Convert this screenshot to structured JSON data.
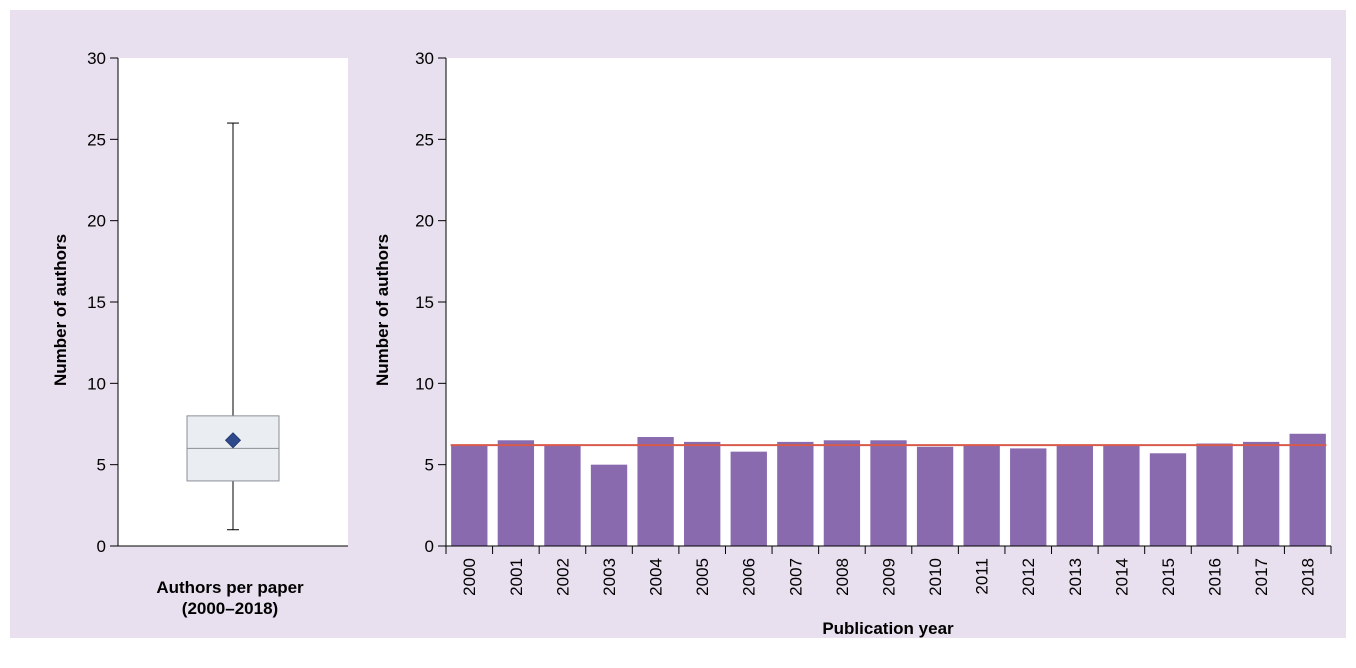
{
  "chart_data": [
    {
      "type": "box",
      "title": "",
      "xlabel": "Authors per paper (2000–2018)",
      "xlabel_lines": [
        "Authors per paper",
        "(2000–2018)"
      ],
      "ylabel": "Number of authors",
      "ylim": [
        0,
        30
      ],
      "yticks": [
        0,
        5,
        10,
        15,
        20,
        25,
        30
      ],
      "box": {
        "min": 1,
        "q1": 4,
        "median": 6,
        "q3": 8,
        "max": 26,
        "mean": 6.5
      },
      "colors": {
        "box_fill": "#eaeef3",
        "box_stroke": "#8a8f96",
        "mean_marker": "#2e4a8c"
      }
    },
    {
      "type": "bar",
      "title": "",
      "xlabel": "Publication year",
      "ylabel": "Number of authors",
      "ylim": [
        0,
        30
      ],
      "yticks": [
        0,
        5,
        10,
        15,
        20,
        25,
        30
      ],
      "categories": [
        "2000",
        "2001",
        "2002",
        "2003",
        "2004",
        "2005",
        "2006",
        "2007",
        "2008",
        "2009",
        "2010",
        "2011",
        "2012",
        "2013",
        "2014",
        "2015",
        "2016",
        "2017",
        "2018"
      ],
      "values": [
        6.2,
        6.5,
        6.2,
        5.0,
        6.7,
        6.4,
        5.8,
        6.4,
        6.5,
        6.5,
        6.1,
        6.2,
        6.0,
        6.2,
        6.2,
        5.7,
        6.3,
        6.4,
        6.9
      ],
      "reference_line": 6.2,
      "colors": {
        "bar": "#8a6aaf",
        "reference_line": "#d85a4a"
      }
    }
  ]
}
